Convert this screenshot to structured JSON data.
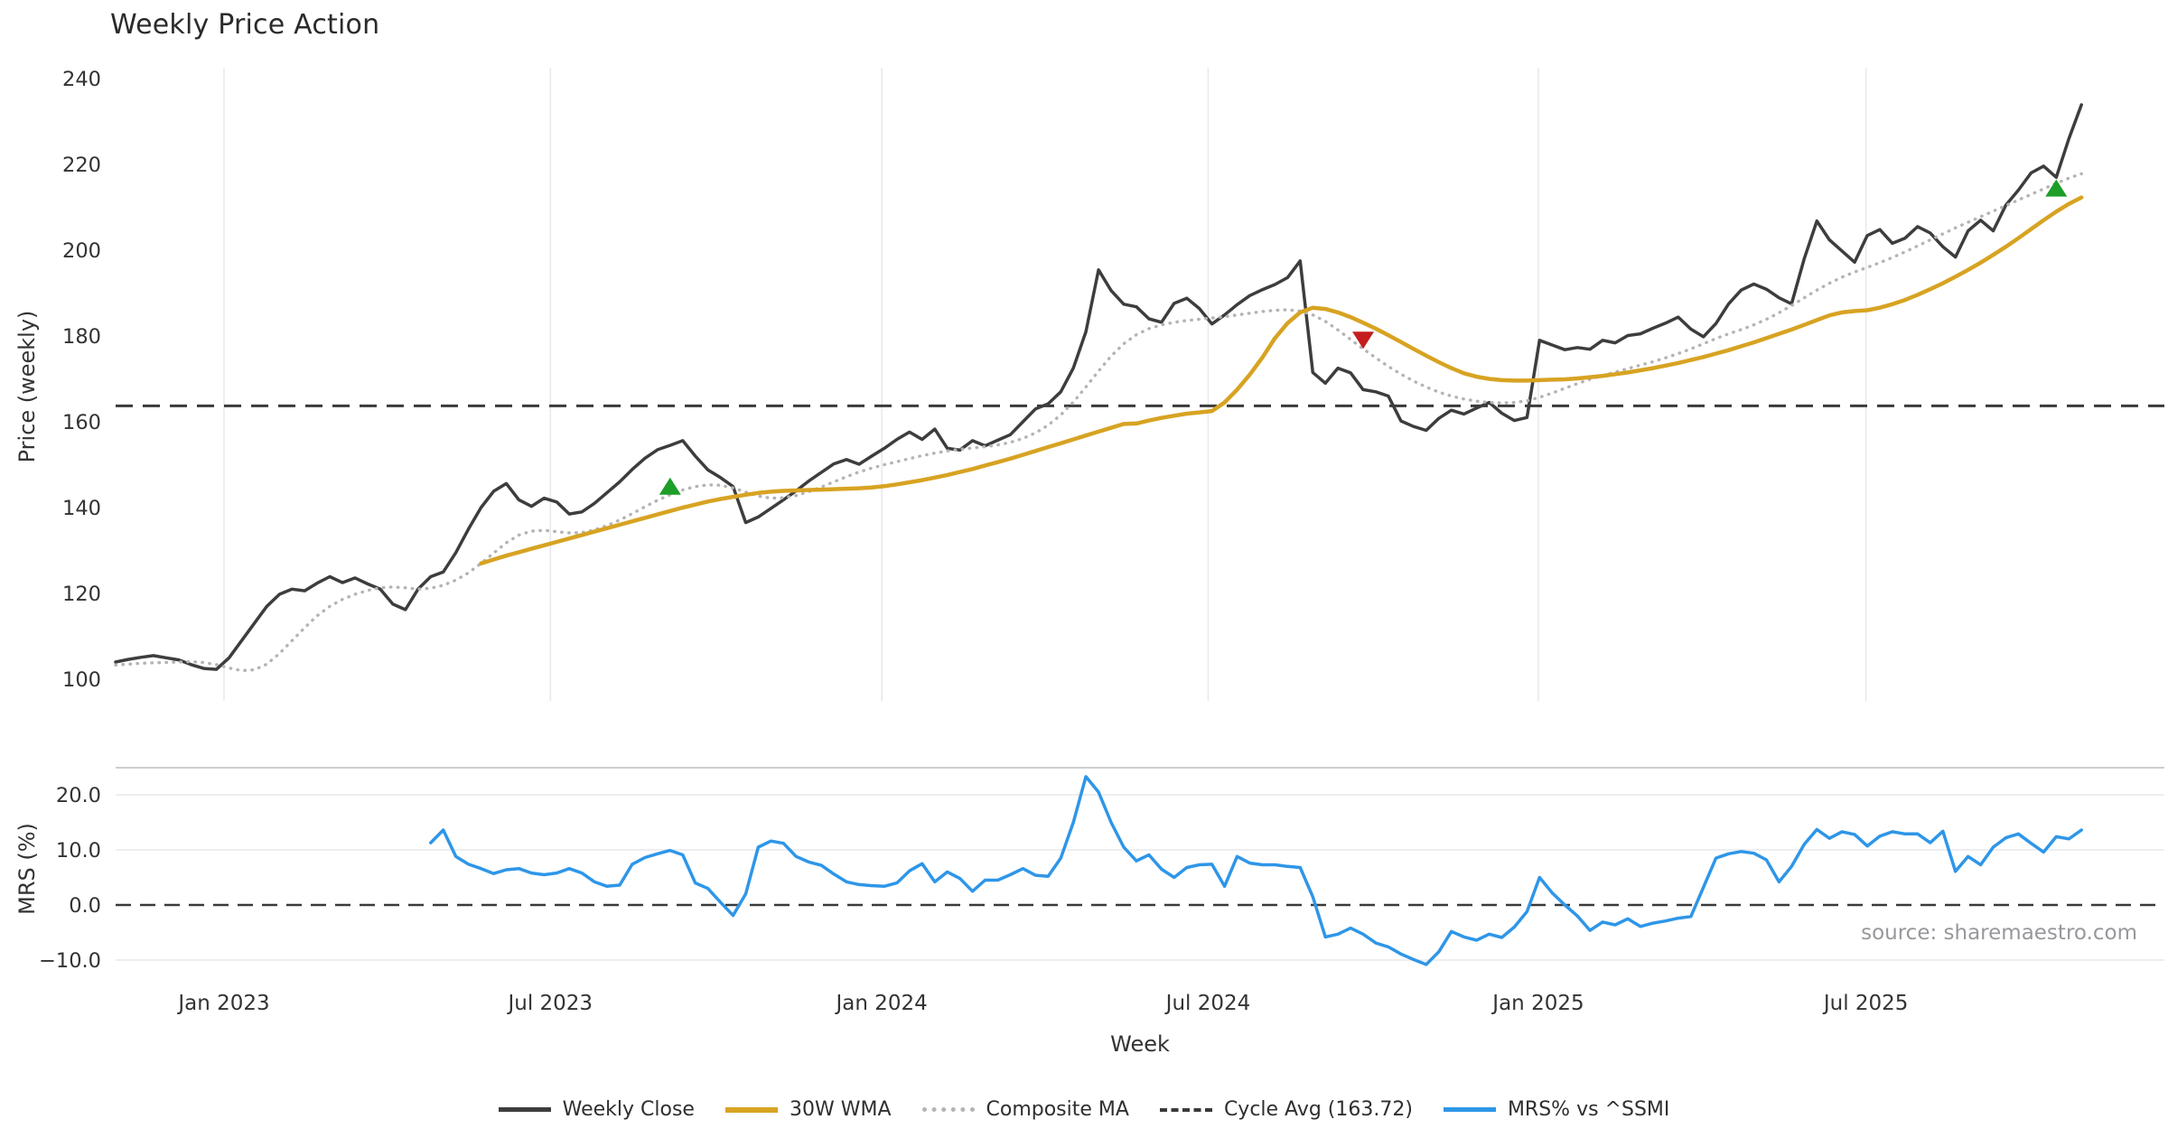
{
  "title": "Weekly Price Action",
  "source_note": "source: sharemaestro.com",
  "axes": {
    "price_ylabel": "Price (weekly)",
    "mrs_ylabel": "MRS (%)",
    "xlabel": "Week",
    "price_ticks": [
      240,
      220,
      200,
      180,
      160,
      140,
      120,
      100
    ],
    "mrs_ticks": [
      {
        "label": "20.0",
        "value": 20
      },
      {
        "label": "10.0",
        "value": 10
      },
      {
        "label": "0.0",
        "value": 0
      },
      {
        "label": "−10.0",
        "value": -10
      }
    ],
    "x_ticks": [
      {
        "label": "Jan 2023",
        "week": 8.6
      },
      {
        "label": "Jul 2023",
        "week": 34.5
      },
      {
        "label": "Jan 2024",
        "week": 60.8
      },
      {
        "label": "Jul 2024",
        "week": 86.7
      },
      {
        "label": "Jan 2025",
        "week": 112.9
      },
      {
        "label": "Jul 2025",
        "week": 138.9
      }
    ]
  },
  "legend": {
    "items": [
      {
        "label": "Weekly Close",
        "swatch": "solid-close"
      },
      {
        "label": "30W WMA",
        "swatch": "solid-wma"
      },
      {
        "label": "Composite MA",
        "swatch": "dotted"
      },
      {
        "label": "Cycle Avg (163.72)",
        "swatch": "dashed"
      },
      {
        "label": "MRS% vs ^SSMI",
        "swatch": "solid-mrs"
      }
    ]
  },
  "colors": {
    "close": "#3d3d3d",
    "wma": "#d7a322",
    "composite": "#b4b4b4",
    "cycle": "#3a3a3a",
    "mrs": "#2e96e8",
    "buy_marker": "#1c9e28",
    "sell_marker": "#c41e1e",
    "grid": "#e8e8f0",
    "mrs_grid": "#e9e9ec",
    "mrs_top_border": "#cdcdd2"
  },
  "chart_data": {
    "type": "line",
    "panels": [
      {
        "id": "price",
        "ylabel": "Price (weekly)",
        "ylim": [
          95,
          242.5
        ],
        "grid": "vertical-only"
      },
      {
        "id": "mrs",
        "ylabel": "MRS (%)",
        "ylim": [
          -12.8,
          24.9
        ],
        "grid": "horizontal-only"
      }
    ],
    "x_axis": {
      "label": "Week",
      "unit": "week_index",
      "n_weeks": 157,
      "first_week_approx": "2022-11-07",
      "last_week_approx": "2025-11-03"
    },
    "cycle_avg": 163.72,
    "mrs_zero_line": 0,
    "series": [
      {
        "name": "Weekly Close",
        "panel": "price",
        "style": "solid",
        "start_index": 0,
        "values": [
          104.0,
          104.6,
          105.1,
          105.5,
          105.0,
          104.5,
          103.4,
          102.5,
          102.3,
          105.0,
          109.0,
          113.0,
          117.0,
          119.8,
          121.0,
          120.6,
          122.4,
          123.9,
          122.5,
          123.6,
          122.2,
          121.0,
          117.5,
          116.2,
          121.0,
          123.9,
          125.0,
          129.5,
          135.0,
          140.0,
          143.8,
          145.6,
          141.8,
          140.3,
          142.2,
          141.3,
          138.5,
          139.0,
          141.0,
          143.5,
          146.0,
          148.9,
          151.5,
          153.5,
          154.5,
          155.6,
          152.0,
          148.8,
          147.0,
          144.9,
          136.5,
          137.8,
          139.8,
          141.8,
          143.9,
          146.2,
          148.2,
          150.2,
          151.2,
          150.1,
          152.0,
          153.8,
          155.9,
          157.6,
          155.9,
          158.3,
          153.8,
          153.4,
          155.6,
          154.4,
          155.7,
          157.0,
          160.0,
          163.0,
          164.2,
          167.0,
          172.5,
          181.0,
          195.4,
          190.6,
          187.4,
          186.8,
          184.0,
          183.2,
          187.6,
          188.8,
          186.4,
          182.8,
          184.9,
          187.3,
          189.4,
          190.8,
          192.0,
          193.6,
          197.5,
          171.5,
          169.0,
          172.5,
          171.4,
          167.5,
          167.0,
          166.0,
          160.2,
          158.9,
          158.0,
          160.8,
          162.7,
          161.8,
          163.2,
          164.5,
          162.0,
          160.3,
          161.0,
          179.0,
          177.9,
          176.8,
          177.3,
          176.9,
          179.0,
          178.4,
          180.1,
          180.5,
          181.8,
          183.0,
          184.4,
          181.6,
          179.8,
          182.9,
          187.5,
          190.7,
          192.1,
          190.9,
          188.9,
          187.5,
          198.0,
          206.8,
          202.4,
          199.8,
          197.2,
          203.4,
          204.8,
          201.6,
          202.8,
          205.5,
          204.0,
          200.8,
          198.4,
          204.5,
          207.0,
          204.5,
          210.5,
          214.0,
          218.0,
          219.6,
          217.0,
          226.0,
          233.9
        ]
      },
      {
        "name": "Composite MA",
        "panel": "price",
        "style": "dotted",
        "start_index": 0,
        "values": [
          103.3,
          103.5,
          103.7,
          103.8,
          103.9,
          104.0,
          104.1,
          103.9,
          103.4,
          102.6,
          102.0,
          102.2,
          103.5,
          106.0,
          109.0,
          112.0,
          114.8,
          117.0,
          118.6,
          119.8,
          120.7,
          121.3,
          121.5,
          121.3,
          121.0,
          121.2,
          121.9,
          123.1,
          124.8,
          127.0,
          129.4,
          131.8,
          133.6,
          134.5,
          134.7,
          134.4,
          134.1,
          134.2,
          134.8,
          135.8,
          137.1,
          138.6,
          140.2,
          141.7,
          143.0,
          144.1,
          144.9,
          145.3,
          145.2,
          144.6,
          143.6,
          142.7,
          142.2,
          142.3,
          142.8,
          143.7,
          144.8,
          146.0,
          147.2,
          148.3,
          149.2,
          150.0,
          150.7,
          151.4,
          152.1,
          152.7,
          153.2,
          153.6,
          153.9,
          154.2,
          154.6,
          155.2,
          156.1,
          157.4,
          159.2,
          161.6,
          164.6,
          168.1,
          171.8,
          175.3,
          178.2,
          180.3,
          181.7,
          182.6,
          183.2,
          183.6,
          183.9,
          184.2,
          184.5,
          184.9,
          185.3,
          185.7,
          186.0,
          186.1,
          185.8,
          184.9,
          183.4,
          181.4,
          179.2,
          177.0,
          174.9,
          172.9,
          171.1,
          169.5,
          168.1,
          166.9,
          166.0,
          165.3,
          164.8,
          164.5,
          164.4,
          164.5,
          164.9,
          165.7,
          166.7,
          167.8,
          168.9,
          169.9,
          170.8,
          171.6,
          172.4,
          173.2,
          174.0,
          174.9,
          175.9,
          177.0,
          178.2,
          179.4,
          180.5,
          181.5,
          182.6,
          183.9,
          185.4,
          187.1,
          188.9,
          190.7,
          192.3,
          193.7,
          194.9,
          196.0,
          197.1,
          198.3,
          199.6,
          201.0,
          202.4,
          203.8,
          205.2,
          206.5,
          207.8,
          209.1,
          210.4,
          211.7,
          213.0,
          214.3,
          215.6,
          216.8,
          217.8
        ]
      },
      {
        "name": "30W WMA",
        "panel": "price",
        "style": "solid",
        "start_index": 29,
        "values": [
          127.0,
          127.9,
          128.8,
          129.6,
          130.4,
          131.2,
          132.0,
          132.8,
          133.6,
          134.4,
          135.2,
          136.0,
          136.8,
          137.6,
          138.4,
          139.2,
          140.0,
          140.7,
          141.4,
          142.0,
          142.5,
          143.0,
          143.4,
          143.7,
          143.9,
          144.0,
          144.1,
          144.2,
          144.3,
          144.4,
          144.5,
          144.7,
          145.0,
          145.4,
          145.9,
          146.4,
          147.0,
          147.6,
          148.3,
          149.0,
          149.8,
          150.6,
          151.4,
          152.3,
          153.2,
          154.1,
          155.0,
          155.9,
          156.8,
          157.7,
          158.6,
          159.5,
          159.6,
          160.3,
          160.9,
          161.4,
          161.9,
          162.2,
          162.5,
          164.5,
          167.5,
          171.0,
          175.0,
          179.5,
          183.0,
          185.5,
          186.6,
          186.3,
          185.5,
          184.4,
          183.1,
          181.7,
          180.2,
          178.6,
          177.0,
          175.4,
          173.9,
          172.5,
          171.3,
          170.5,
          170.0,
          169.7,
          169.6,
          169.6,
          169.7,
          169.8,
          169.9,
          170.1,
          170.4,
          170.7,
          171.1,
          171.5,
          172.0,
          172.5,
          173.1,
          173.7,
          174.4,
          175.1,
          175.9,
          176.7,
          177.6,
          178.5,
          179.5,
          180.5,
          181.5,
          182.6,
          183.7,
          184.8,
          185.5,
          185.8,
          186.0,
          186.6,
          187.4,
          188.4,
          189.6,
          190.9,
          192.3,
          193.8,
          195.4,
          197.1,
          198.9,
          200.8,
          202.8,
          204.9,
          207.0,
          209.0,
          210.8,
          212.3
        ]
      },
      {
        "name": "MRS% vs ^SSMI",
        "panel": "mrs",
        "style": "solid",
        "start_index": 25,
        "values": [
          11.3,
          13.6,
          8.8,
          7.4,
          6.6,
          5.7,
          6.4,
          6.6,
          5.8,
          5.5,
          5.8,
          6.6,
          5.8,
          4.2,
          3.4,
          3.6,
          7.4,
          8.6,
          9.3,
          9.9,
          9.1,
          4.0,
          3.0,
          0.5,
          -1.9,
          2.0,
          10.5,
          11.6,
          11.2,
          8.8,
          7.8,
          7.2,
          5.6,
          4.2,
          3.7,
          3.5,
          3.4,
          4.0,
          6.2,
          7.5,
          4.2,
          6.0,
          4.8,
          2.5,
          4.5,
          4.5,
          5.5,
          6.6,
          5.4,
          5.2,
          8.5,
          15.0,
          23.3,
          20.5,
          15.0,
          10.5,
          8.0,
          9.1,
          6.5,
          5.0,
          6.8,
          7.3,
          7.4,
          3.4,
          8.8,
          7.6,
          7.3,
          7.3,
          7.0,
          6.8,
          1.5,
          -5.8,
          -5.3,
          -4.2,
          -5.3,
          -6.9,
          -7.6,
          -8.9,
          -9.9,
          -10.8,
          -8.5,
          -4.8,
          -5.8,
          -6.4,
          -5.3,
          -5.9,
          -4.0,
          -1.2,
          5.0,
          2.2,
          0.0,
          -2.0,
          -4.6,
          -3.1,
          -3.6,
          -2.5,
          -3.9,
          -3.3,
          -2.9,
          -2.4,
          -2.1,
          3.2,
          8.5,
          9.3,
          9.7,
          9.4,
          8.2,
          4.2,
          7.0,
          11.0,
          13.7,
          12.1,
          13.3,
          12.8,
          10.7,
          12.5,
          13.3,
          12.9,
          12.9,
          11.3,
          13.4,
          6.1,
          8.8,
          7.3,
          10.5,
          12.2,
          12.9,
          11.2,
          9.6,
          12.4,
          12.0,
          13.6
        ]
      }
    ],
    "markers": [
      {
        "type": "buy",
        "shape": "triangle-up",
        "week": 44,
        "value": 145.0,
        "panel": "price"
      },
      {
        "type": "sell",
        "shape": "triangle-down",
        "week": 99,
        "value": 179.0,
        "panel": "price"
      },
      {
        "type": "buy",
        "shape": "triangle-up",
        "week": 154,
        "value": 214.5,
        "panel": "price"
      }
    ]
  }
}
